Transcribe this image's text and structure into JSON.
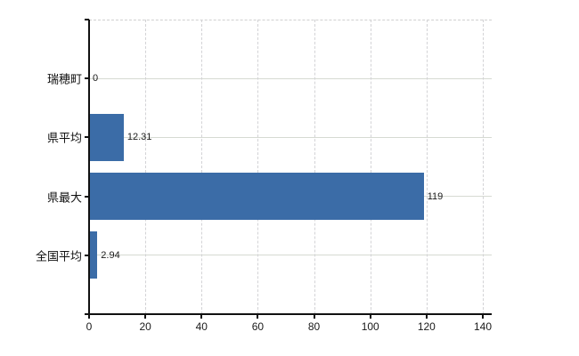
{
  "chart_data": {
    "type": "bar",
    "orientation": "horizontal",
    "title": "",
    "xlabel": "",
    "ylabel": "",
    "categories": [
      "瑞穂町",
      "県平均",
      "県最大",
      "全国平均"
    ],
    "values": [
      0,
      12.31,
      119,
      2.94
    ],
    "value_labels": [
      "0",
      "12.31",
      "119",
      "2.94"
    ],
    "xlim": [
      0,
      140
    ],
    "x_ticks": [
      0,
      20,
      40,
      60,
      80,
      100,
      120,
      140
    ],
    "grid": true,
    "legend": false,
    "bar_color": "#3b6ca7",
    "vertical_gridline_color": "#d3d3d6",
    "horizontal_gridline_color": "#d6dad2",
    "axis_color": "#111111",
    "text_color": "#1a1a1a",
    "background_color": "#ffffff"
  }
}
